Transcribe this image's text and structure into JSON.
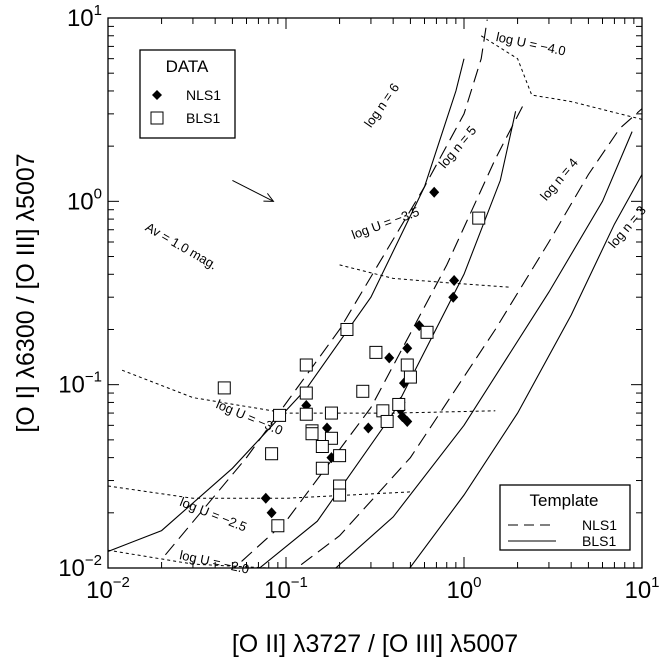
{
  "chart_data": {
    "type": "scatter",
    "xlabel": "[O II] λ3727 / [O III] λ5007",
    "ylabel": "[O I] λ6300 / [O III] λ5007",
    "x_scale": "log",
    "y_scale": "log",
    "xlim": [
      0.01,
      10
    ],
    "ylim": [
      0.01,
      10
    ],
    "x_ticks": [
      {
        "value": 0.01,
        "base": "10",
        "exp": "−2"
      },
      {
        "value": 0.1,
        "base": "10",
        "exp": "−1"
      },
      {
        "value": 1,
        "base": "10",
        "exp": "0"
      },
      {
        "value": 10,
        "base": "10",
        "exp": "1"
      }
    ],
    "y_ticks": [
      {
        "value": 0.01,
        "base": "10",
        "exp": "−2"
      },
      {
        "value": 0.1,
        "base": "10",
        "exp": "−1"
      },
      {
        "value": 1,
        "base": "10",
        "exp": "0"
      },
      {
        "value": 10,
        "base": "10",
        "exp": "1"
      }
    ],
    "grid": false,
    "legends": [
      {
        "title": "DATA",
        "placement": "top-left",
        "entries": [
          {
            "label": "NLS1",
            "marker": "filled-diamond"
          },
          {
            "label": "BLS1",
            "marker": "open-square"
          }
        ]
      },
      {
        "title": "Template",
        "placement": "bottom-right",
        "entries": [
          {
            "label": "NLS1",
            "line": "long-dash"
          },
          {
            "label": "BLS1",
            "line": "solid"
          }
        ]
      }
    ],
    "series": [
      {
        "name": "NLS1",
        "marker": "filled-diamond",
        "points": [
          [
            0.68,
            1.12
          ],
          [
            0.88,
            0.37
          ],
          [
            0.87,
            0.3
          ],
          [
            0.56,
            0.21
          ],
          [
            0.48,
            0.158
          ],
          [
            0.38,
            0.14
          ],
          [
            0.46,
            0.102
          ],
          [
            0.44,
            0.08
          ],
          [
            0.44,
            0.073
          ],
          [
            0.45,
            0.067
          ],
          [
            0.48,
            0.063
          ],
          [
            0.37,
            0.063
          ],
          [
            0.29,
            0.058
          ],
          [
            0.17,
            0.058
          ],
          [
            0.13,
            0.077
          ],
          [
            0.18,
            0.04
          ],
          [
            0.077,
            0.024
          ],
          [
            0.083,
            0.02
          ]
        ]
      },
      {
        "name": "BLS1",
        "marker": "open-square",
        "points": [
          [
            1.21,
            0.81
          ],
          [
            0.62,
            0.193
          ],
          [
            0.22,
            0.2
          ],
          [
            0.32,
            0.15
          ],
          [
            0.13,
            0.128
          ],
          [
            0.48,
            0.128
          ],
          [
            0.5,
            0.11
          ],
          [
            0.045,
            0.096
          ],
          [
            0.27,
            0.092
          ],
          [
            0.13,
            0.09
          ],
          [
            0.43,
            0.078
          ],
          [
            0.35,
            0.072
          ],
          [
            0.18,
            0.07
          ],
          [
            0.13,
            0.069
          ],
          [
            0.092,
            0.068
          ],
          [
            0.37,
            0.063
          ],
          [
            0.14,
            0.056
          ],
          [
            0.14,
            0.054
          ],
          [
            0.18,
            0.051
          ],
          [
            0.16,
            0.046
          ],
          [
            0.2,
            0.041
          ],
          [
            0.083,
            0.042
          ],
          [
            0.16,
            0.035
          ],
          [
            0.2,
            0.028
          ],
          [
            0.2,
            0.025
          ],
          [
            0.09,
            0.017
          ]
        ]
      },
      {
        "name": "log n = 6",
        "template": "NLS1",
        "style": "long-dash",
        "points": [
          [
            0.021,
            0.0118
          ],
          [
            0.06,
            0.04
          ],
          [
            0.2,
            0.2
          ],
          [
            0.6,
            1.2
          ],
          [
            1.0,
            3.0
          ],
          [
            1.25,
            6.0
          ],
          [
            1.35,
            9.8
          ]
        ]
      },
      {
        "name": "log n = 6",
        "template": "BLS1",
        "style": "solid",
        "points": [
          [
            0.01,
            0.0123
          ],
          [
            0.02,
            0.016
          ],
          [
            0.05,
            0.035
          ],
          [
            0.13,
            0.095
          ],
          [
            0.3,
            0.3
          ],
          [
            0.6,
            1.2
          ],
          [
            0.9,
            4.0
          ],
          [
            1.0,
            6.0
          ]
        ]
      },
      {
        "name": "log n = 5",
        "template": "NLS1",
        "style": "long-dash",
        "points": [
          [
            0.046,
            0.0091
          ],
          [
            0.1,
            0.018
          ],
          [
            0.3,
            0.075
          ],
          [
            0.8,
            0.45
          ],
          [
            1.5,
            1.7
          ],
          [
            2.2,
            3.5
          ]
        ]
      },
      {
        "name": "log n = 5",
        "template": "BLS1",
        "style": "solid",
        "points": [
          [
            0.064,
            0.0092
          ],
          [
            0.15,
            0.018
          ],
          [
            0.4,
            0.07
          ],
          [
            1.0,
            0.4
          ],
          [
            1.6,
            1.3
          ],
          [
            1.95,
            3.1
          ]
        ]
      },
      {
        "name": "log n = 4",
        "template": "NLS1",
        "style": "long-dash",
        "points": [
          [
            0.098,
            0.0089
          ],
          [
            0.2,
            0.015
          ],
          [
            0.5,
            0.04
          ],
          [
            1.5,
            0.2
          ],
          [
            3.0,
            0.6
          ],
          [
            5.0,
            1.4
          ],
          [
            7.5,
            2.5
          ],
          [
            10,
            3.2
          ]
        ]
      },
      {
        "name": "log n = 4",
        "template": "BLS1",
        "style": "solid",
        "points": [
          [
            0.16,
            0.0086
          ],
          [
            0.4,
            0.019
          ],
          [
            1.0,
            0.06
          ],
          [
            3.0,
            0.32
          ],
          [
            6.0,
            1.0
          ],
          [
            8.8,
            2.4
          ]
        ]
      },
      {
        "name": "log n = 3",
        "template": "BLS1",
        "style": "solid",
        "points": [
          [
            0.43,
            0.0083
          ],
          [
            1.0,
            0.025
          ],
          [
            2.0,
            0.07
          ],
          [
            4.0,
            0.24
          ],
          [
            7.0,
            0.75
          ],
          [
            10,
            1.4
          ]
        ]
      },
      {
        "name": "log U = −4.0",
        "style": "dotted",
        "points": [
          [
            1.25,
            8.0
          ],
          [
            2.0,
            6.0
          ],
          [
            2.4,
            3.8
          ],
          [
            4.0,
            3.5
          ],
          [
            10,
            2.8
          ]
        ]
      },
      {
        "name": "log U = −3.5",
        "style": "dotted",
        "points": [
          [
            0.2,
            0.45
          ],
          [
            0.4,
            0.38
          ],
          [
            0.8,
            0.36
          ],
          [
            1.8,
            0.34
          ]
        ]
      },
      {
        "name": "log U = −3.0",
        "style": "dotted",
        "points": [
          [
            0.012,
            0.12
          ],
          [
            0.03,
            0.085
          ],
          [
            0.1,
            0.07
          ],
          [
            0.4,
            0.07
          ],
          [
            1.5,
            0.072
          ]
        ]
      },
      {
        "name": "log U = −2.5",
        "style": "dotted",
        "points": [
          [
            0.01,
            0.028
          ],
          [
            0.03,
            0.024
          ],
          [
            0.1,
            0.024
          ],
          [
            0.5,
            0.026
          ]
        ]
      },
      {
        "name": "log U = −2.0",
        "style": "dotted",
        "points": [
          [
            0.01,
            0.0125
          ],
          [
            0.03,
            0.0105
          ],
          [
            0.08,
            0.01
          ]
        ]
      }
    ],
    "annotations": [
      {
        "text": "log U = −4.0",
        "x": 1.5,
        "y": 7.5,
        "angle": 12
      },
      {
        "text": "log U = −3.5",
        "x": 0.24,
        "y": 0.62,
        "angle": -20
      },
      {
        "text": "log U = −3.0",
        "x": 0.04,
        "y": 0.075,
        "angle": 23
      },
      {
        "text": "log U = −2.5",
        "x": 0.025,
        "y": 0.022,
        "angle": 22
      },
      {
        "text": "log U = −2.0",
        "x": 0.025,
        "y": 0.0112,
        "angle": 12
      },
      {
        "text": "log n = 6",
        "x": 0.3,
        "y": 2.5,
        "angle": -55
      },
      {
        "text": "log n = 5",
        "x": 0.78,
        "y": 1.5,
        "angle": -50
      },
      {
        "text": "log n = 4",
        "x": 2.9,
        "y": 1.0,
        "angle": -50
      },
      {
        "text": "log n = 3",
        "x": 7.0,
        "y": 0.55,
        "angle": -50
      },
      {
        "text": "Av = 1.0 mag.",
        "x": 0.016,
        "y": 0.7,
        "angle": 30,
        "arrow": {
          "from": [
            0.05,
            1.3
          ],
          "to": [
            0.085,
            1.0
          ]
        }
      }
    ]
  }
}
